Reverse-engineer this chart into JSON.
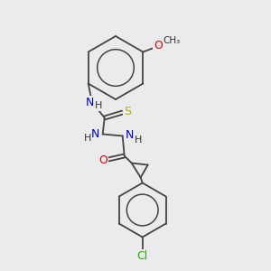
{
  "bg_color": "#ebebee",
  "atom_colors": {
    "N": "#0000cc",
    "O": "#dd0000",
    "S": "#bbaa00",
    "Cl": "#22aa00",
    "C": "#333333",
    "H": "#333333"
  },
  "bond_color": "#444444",
  "lw": 1.3
}
